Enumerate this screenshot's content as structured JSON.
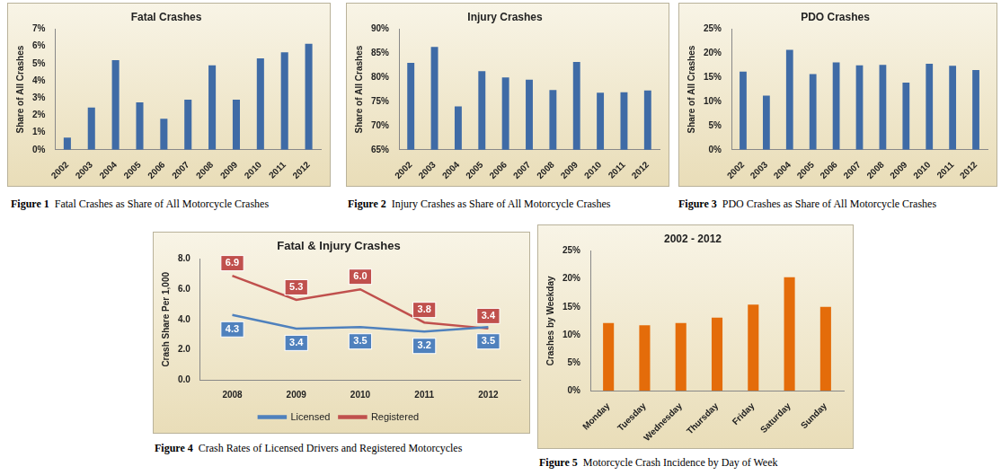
{
  "chart_data": [
    {
      "type": "bar",
      "title": "Fatal Crashes",
      "figure": "Figure 1",
      "caption": "Fatal Crashes as Share of All Motorcycle Crashes",
      "y_label": "Share of All Crashes",
      "categories": [
        "2002",
        "2003",
        "2004",
        "2005",
        "2006",
        "2007",
        "2008",
        "2009",
        "2010",
        "2011",
        "2012"
      ],
      "values": [
        0.7,
        2.45,
        5.2,
        2.75,
        1.8,
        2.9,
        4.9,
        2.9,
        5.3,
        5.65,
        6.15
      ],
      "color": "#3f6ba6",
      "ylim": [
        0,
        7
      ],
      "yticks": [
        {
          "value": 0,
          "label": "0%"
        },
        {
          "value": 1,
          "label": "1%"
        },
        {
          "value": 2,
          "label": "2%"
        },
        {
          "value": 3,
          "label": "3%"
        },
        {
          "value": 4,
          "label": "4%"
        },
        {
          "value": 5,
          "label": "5%"
        },
        {
          "value": 6,
          "label": "6%"
        },
        {
          "value": 7,
          "label": "7%"
        }
      ],
      "grid": false
    },
    {
      "type": "bar",
      "title": "Injury Crashes",
      "figure": "Figure 2",
      "caption": "Injury Crashes as Share of All Motorcycle Crashes",
      "y_label": "Share of All Crashes",
      "categories": [
        "2002",
        "2003",
        "2004",
        "2005",
        "2006",
        "2007",
        "2008",
        "2009",
        "2010",
        "2011",
        "2012"
      ],
      "values": [
        83.0,
        86.3,
        74.0,
        81.3,
        80.0,
        79.5,
        77.4,
        83.2,
        76.8,
        76.9,
        77.3
      ],
      "color": "#3f6ba6",
      "ylim": [
        65,
        90
      ],
      "yticks": [
        {
          "value": 65,
          "label": "65%"
        },
        {
          "value": 70,
          "label": "70%"
        },
        {
          "value": 75,
          "label": "75%"
        },
        {
          "value": 80,
          "label": "80%"
        },
        {
          "value": 85,
          "label": "85%"
        },
        {
          "value": 90,
          "label": "90%"
        }
      ],
      "grid": false
    },
    {
      "type": "bar",
      "title": "PDO Crashes",
      "figure": "Figure 3",
      "caption": "PDO Crashes as Share of All Motorcycle Crashes",
      "y_label": "Share of All Crashes",
      "categories": [
        "2002",
        "2003",
        "2004",
        "2005",
        "2006",
        "2007",
        "2008",
        "2009",
        "2010",
        "2011",
        "2012"
      ],
      "values": [
        16.2,
        11.2,
        20.7,
        15.7,
        18.1,
        17.5,
        17.6,
        13.9,
        17.8,
        17.4,
        16.5
      ],
      "color": "#3f6ba6",
      "ylim": [
        0,
        25
      ],
      "yticks": [
        {
          "value": 0,
          "label": "0%"
        },
        {
          "value": 5,
          "label": "5%"
        },
        {
          "value": 10,
          "label": "10%"
        },
        {
          "value": 15,
          "label": "15%"
        },
        {
          "value": 20,
          "label": "20%"
        },
        {
          "value": 25,
          "label": "25%"
        }
      ],
      "grid": false
    },
    {
      "type": "line",
      "title": "Fatal & Injury Crashes",
      "figure": "Figure 4",
      "caption": "Crash Rates of Licensed Drivers and Registered Motorcycles",
      "y_label": "Crash Share Per 1,000",
      "categories": [
        "2008",
        "2009",
        "2010",
        "2011",
        "2012"
      ],
      "series": [
        {
          "name": "Licensed",
          "color": "#4f81bd",
          "values": [
            4.3,
            3.4,
            3.5,
            3.2,
            3.5
          ],
          "value_labels": [
            "4.3",
            "3.4",
            "3.5",
            "3.2",
            "3.5"
          ]
        },
        {
          "name": "Registered",
          "color": "#c0504d",
          "values": [
            6.9,
            5.3,
            6.0,
            3.8,
            3.4
          ],
          "value_labels": [
            "6.9",
            "5.3",
            "6.0",
            "3.8",
            "3.4"
          ]
        }
      ],
      "ylim": [
        0,
        8
      ],
      "yticks": [
        {
          "value": 0,
          "label": "0.0"
        },
        {
          "value": 2,
          "label": "2.0"
        },
        {
          "value": 4,
          "label": "4.0"
        },
        {
          "value": 6,
          "label": "6.0"
        },
        {
          "value": 8,
          "label": "8.0"
        }
      ],
      "grid": false,
      "legend": "bottom",
      "data_labels": true
    },
    {
      "type": "bar",
      "title": "2002 - 2012",
      "figure": "Figure 5",
      "caption": "Motorcycle Crash Incidence by Day of Week",
      "y_label": "Crashes by Weekday",
      "categories": [
        "Monday",
        "Tuesday",
        "Wednesday",
        "Thursday",
        "Friday",
        "Saturday",
        "Sunday"
      ],
      "values": [
        12.1,
        11.7,
        12.1,
        13.1,
        15.4,
        20.3,
        15.0
      ],
      "color": "#e46c0a",
      "ylim": [
        0,
        25
      ],
      "yticks": [
        {
          "value": 0,
          "label": "0%"
        },
        {
          "value": 5,
          "label": "5%"
        },
        {
          "value": 10,
          "label": "10%"
        },
        {
          "value": 15,
          "label": "15%"
        },
        {
          "value": 20,
          "label": "20%"
        },
        {
          "value": 25,
          "label": "25%"
        }
      ],
      "grid": false
    }
  ]
}
